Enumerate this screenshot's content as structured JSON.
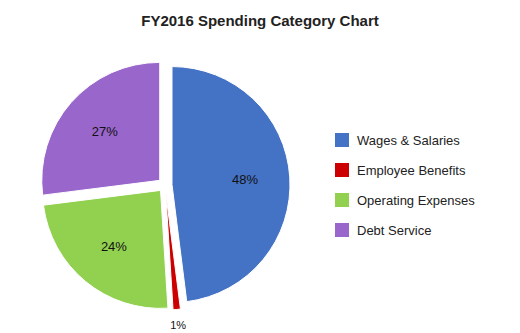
{
  "chart_data": {
    "type": "pie",
    "title": "FY2016 Spending Category Chart",
    "categories": [
      "Wages & Salaries",
      "Employee Benefits",
      "Operating Expenses",
      "Debt Service"
    ],
    "values": [
      48,
      1,
      24,
      27
    ],
    "value_labels": [
      "48%",
      "1%",
      "24%",
      "27%"
    ],
    "colors": [
      "#4472C4",
      "#CC0000",
      "#92D050",
      "#9966CC"
    ],
    "data_labels": true,
    "legend": "right"
  }
}
